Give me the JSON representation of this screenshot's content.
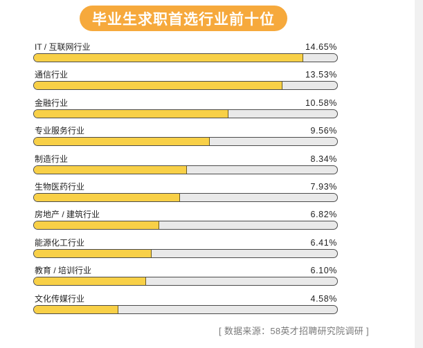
{
  "colors": {
    "title_bg": "#F6A93C",
    "bar_fill": "#F8D047",
    "bar_track": "#E9E9E9"
  },
  "chart_data": {
    "type": "bar",
    "orientation": "horizontal",
    "title": "毕业生求职首选行业前十位",
    "categories": [
      "IT / 互联网行业",
      "通信行业",
      "金融行业",
      "专业服务行业",
      "制造行业",
      "生物医药行业",
      "房地产 / 建筑行业",
      "能源化工行业",
      "教育 / 培训行业",
      "文化传媒行业"
    ],
    "values": [
      14.65,
      13.53,
      10.58,
      9.56,
      8.34,
      7.93,
      6.82,
      6.41,
      6.1,
      4.58
    ],
    "data_labels": [
      "14.65%",
      "13.53%",
      "10.58%",
      "9.56%",
      "8.34%",
      "7.93%",
      "6.82%",
      "6.41%",
      "6.10%",
      "4.58%"
    ],
    "xlim": [
      0,
      16.5
    ],
    "grid": false,
    "legend": "none"
  },
  "source_note": "[ 数据来源：58英才招聘研究院调研 ]"
}
